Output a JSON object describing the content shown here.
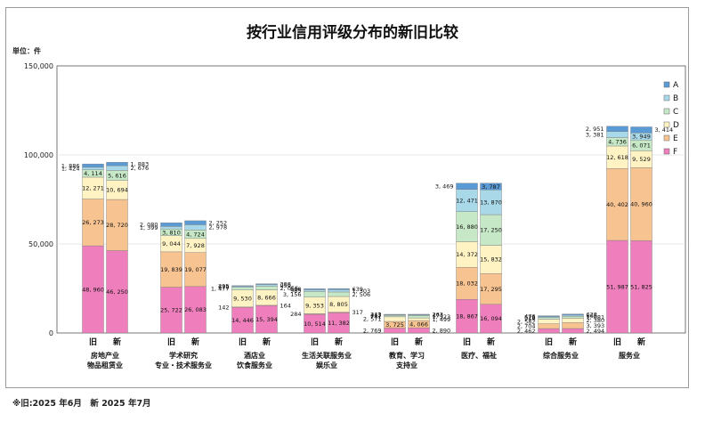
{
  "title": "按行业信用评级分布的新旧比较",
  "unit_label": "単位：件",
  "footnote": "※旧:2025 年6月　新 2025 年7月",
  "colors": {
    "A": "#5b9bd5",
    "B": "#a9d8e8",
    "C": "#c6e8c6",
    "D": "#fff3c4",
    "E": "#f7c391",
    "F": "#ef7fbc"
  },
  "chart_data": {
    "type": "bar",
    "stacked": true,
    "ylim": [
      0,
      150000
    ],
    "yticks": [
      0,
      50000,
      100000,
      150000
    ],
    "ytick_labels": [
      "0",
      "50,000",
      "100,000",
      "150,000"
    ],
    "legend_position": "right",
    "legend": [
      "A",
      "B",
      "C",
      "D",
      "E",
      "F"
    ],
    "bar_tags": [
      "旧",
      "新"
    ],
    "groups": [
      {
        "label_lines": [
          "房地产业",
          "物品租赁业"
        ],
        "old": {
          "A": 1886,
          "B": 1424,
          "C": 4114,
          "D": 12271,
          "E": 26273,
          "F": 48960
        },
        "new": {
          "A": 1883,
          "B": 2676,
          "C": 5616,
          "D": 10694,
          "E": 28720,
          "F": 46250
        }
      },
      {
        "label_lines": [
          "学术研究",
          "专业・技术服务业"
        ],
        "old": {
          "A": 2080,
          "B": 1399,
          "C": 3810,
          "D": 9044,
          "E": 19839,
          "F": 25722
        },
        "new": {
          "A": 2252,
          "B": 2978,
          "C": 4724,
          "D": 7928,
          "E": 19077,
          "F": 26083
        }
      },
      {
        "label_lines": [
          "酒店业",
          "饮食服务业"
        ],
        "old": {
          "A": 295,
          "B": 678,
          "C": 1477,
          "D": 9530,
          "E": 142,
          "F": 14446
        },
        "new": {
          "A": 388,
          "B": 959,
          "C": 2056,
          "D": 8666,
          "E": 164,
          "F": 15394
        }
      },
      {
        "label_lines": [
          "生活关联服务业",
          "娱乐业"
        ],
        "old": {
          "A": 538,
          "B": 985,
          "C": 3156,
          "D": 9353,
          "E": 284,
          "F": 10514
        },
        "new": {
          "A": 639,
          "B": 1303,
          "C": 2506,
          "D": 8805,
          "E": 317,
          "F": 11382
        }
      },
      {
        "label_lines": [
          "教育、学习",
          "支持业"
        ],
        "old": {
          "A": 243,
          "B": 413,
          "C": 781,
          "D": 2571,
          "E": 3725,
          "F": 2769
        },
        "new": {
          "A": 263,
          "B": 474,
          "C": 1323,
          "D": 1499,
          "E": 4066,
          "F": 2890
        }
      },
      {
        "label_lines": [
          "医疗、福祉"
        ],
        "old": {
          "A": 3469,
          "B": 12471,
          "C": 16880,
          "D": 14372,
          "E": 18032,
          "F": 18867
        },
        "new": {
          "A": 3787,
          "B": 13870,
          "C": 17250,
          "D": 15832,
          "E": 17295,
          "F": 16094
        }
      },
      {
        "label_lines": [
          "综合服务业"
        ],
        "old": {
          "A": 476,
          "B": 526,
          "C": 914,
          "D": 2582,
          "E": 2704,
          "F": 2462
        },
        "new": {
          "A": 628,
          "B": 665,
          "C": 1081,
          "D": 2380,
          "E": 3393,
          "F": 2494
        }
      },
      {
        "label_lines": [
          "服务业"
        ],
        "old": {
          "A": 2951,
          "B": 3381,
          "C": 4736,
          "D": 12618,
          "E": 40402,
          "F": 51987
        },
        "new": {
          "A": 3414,
          "B": 3949,
          "C": 6071,
          "D": 9529,
          "E": 40960,
          "F": 51825
        }
      }
    ]
  }
}
